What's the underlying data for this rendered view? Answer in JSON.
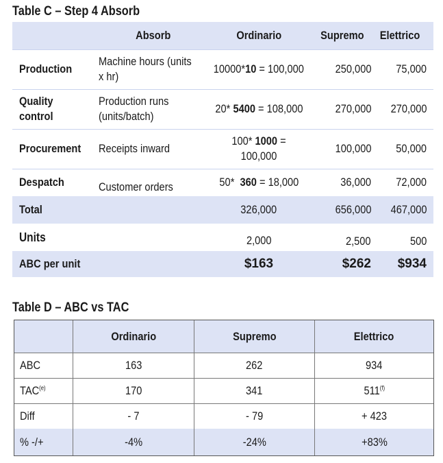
{
  "tableC": {
    "title": "Table C – Step 4 Absorb",
    "header": {
      "absorb": "Absorb",
      "ordinario": "Ordinario",
      "supremo": "Supremo",
      "elettrico": "Elettrico"
    },
    "rows": [
      {
        "label": "Production",
        "driver": "Machine hours (units x hr)",
        "ord_pre": "10000*",
        "ord_bold": "10",
        "ord_post": " = 100,000",
        "supremo": "250,000",
        "elettrico": "75,000"
      },
      {
        "label": "Quality control",
        "driver": "Production runs (units/batch)",
        "ord_pre": "20* ",
        "ord_bold": "5400",
        "ord_post": " = 108,000",
        "supremo": "270,000",
        "elettrico": "270,000"
      },
      {
        "label": "Procurement",
        "driver": "Receipts inward",
        "ord_pre": "100* ",
        "ord_bold": "1000",
        "ord_post": " = 100,000",
        "supremo": "100,000",
        "elettrico": "50,000"
      },
      {
        "label": "Despatch",
        "driver": "Customer orders",
        "ord_pre": "50*  ",
        "ord_bold": "360",
        "ord_post": " = 18,000",
        "supremo": "36,000",
        "elettrico": "72,000"
      }
    ],
    "total": {
      "label": "Total",
      "ordinario": "326,000",
      "supremo": "656,000",
      "elettrico": "467,000"
    },
    "units": {
      "label": "Units",
      "ordinario": "2,000",
      "supremo": "2,500",
      "elettrico": "500"
    },
    "abc": {
      "label": "ABC per unit",
      "ordinario": "$163",
      "supremo": "$262",
      "elettrico": "$934"
    }
  },
  "tableD": {
    "title": "Table D – ABC vs TAC",
    "header": {
      "ordinario": "Ordinario",
      "supremo": "Supremo",
      "elettrico": "Elettrico"
    },
    "rows": [
      {
        "label": "ABC",
        "label_sup": "",
        "ordinario": "163",
        "supremo": "262",
        "elettrico": "934",
        "elettrico_sup": ""
      },
      {
        "label": "TAC",
        "label_sup": "(e)",
        "ordinario": "170",
        "supremo": "341",
        "elettrico": "511",
        "elettrico_sup": "(f)"
      },
      {
        "label": "Diff",
        "label_sup": "",
        "ordinario": "- 7",
        "supremo": "- 79",
        "elettrico": "+ 423",
        "elettrico_sup": ""
      },
      {
        "label": "% -/+",
        "label_sup": "",
        "ordinario": "-4%",
        "supremo": "-24%",
        "elettrico": "+83%",
        "elettrico_sup": ""
      }
    ]
  }
}
